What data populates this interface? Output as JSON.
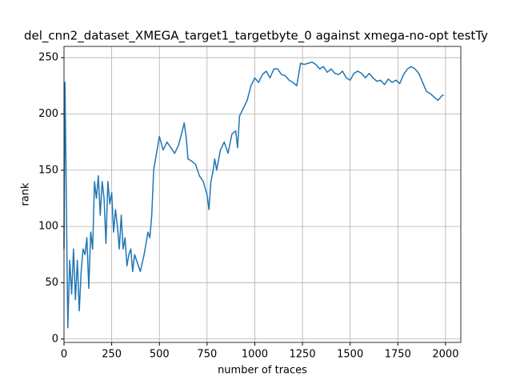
{
  "chart_data": {
    "type": "line",
    "title": "del_cnn2_dataset_XMEGA_target1_targetbyte_0 against xmega-no-opt testTy",
    "x_label": "number of traces",
    "y_label": "rank",
    "x": [
      0,
      5,
      10,
      15,
      20,
      30,
      40,
      50,
      60,
      70,
      80,
      90,
      100,
      110,
      120,
      130,
      140,
      150,
      160,
      170,
      180,
      190,
      200,
      210,
      220,
      230,
      240,
      250,
      260,
      270,
      280,
      290,
      300,
      310,
      320,
      330,
      340,
      350,
      360,
      370,
      380,
      400,
      420,
      440,
      450,
      460,
      470,
      480,
      500,
      520,
      540,
      560,
      580,
      600,
      620,
      630,
      640,
      650,
      670,
      690,
      710,
      730,
      750,
      760,
      770,
      780,
      790,
      800,
      820,
      840,
      860,
      880,
      900,
      910,
      920,
      940,
      960,
      980,
      1000,
      1020,
      1040,
      1060,
      1080,
      1100,
      1120,
      1140,
      1160,
      1180,
      1200,
      1220,
      1240,
      1260,
      1280,
      1300,
      1320,
      1340,
      1360,
      1380,
      1400,
      1420,
      1440,
      1460,
      1480,
      1500,
      1520,
      1540,
      1560,
      1580,
      1600,
      1620,
      1640,
      1660,
      1680,
      1700,
      1720,
      1740,
      1760,
      1780,
      1800,
      1820,
      1840,
      1860,
      1880,
      1900,
      1920,
      1940,
      1960,
      1980,
      1990
    ],
    "series": [
      {
        "name": "rank",
        "color": "#1f77b4",
        "values": [
          80,
          228,
          160,
          80,
          10,
          70,
          40,
          80,
          35,
          70,
          25,
          60,
          80,
          75,
          90,
          45,
          95,
          80,
          140,
          125,
          145,
          110,
          140,
          125,
          85,
          140,
          120,
          130,
          95,
          115,
          100,
          80,
          110,
          80,
          90,
          65,
          75,
          80,
          60,
          75,
          70,
          60,
          75,
          95,
          90,
          110,
          150,
          160,
          180,
          168,
          175,
          170,
          165,
          172,
          185,
          192,
          180,
          160,
          158,
          155,
          145,
          140,
          128,
          115,
          140,
          148,
          160,
          150,
          168,
          175,
          165,
          182,
          185,
          170,
          198,
          205,
          212,
          225,
          232,
          228,
          235,
          238,
          232,
          240,
          240,
          235,
          234,
          230,
          228,
          225,
          245,
          244,
          245,
          246,
          244,
          240,
          242,
          237,
          240,
          236,
          235,
          238,
          232,
          230,
          236,
          238,
          236,
          232,
          236,
          232,
          229,
          230,
          226,
          231,
          228,
          230,
          227,
          235,
          240,
          242,
          240,
          236,
          228,
          220,
          218,
          215,
          212,
          216,
          217
        ]
      }
    ],
    "xlim": [
      0,
      2080
    ],
    "ylim": [
      -3,
      260
    ],
    "xticks": [
      0,
      250,
      500,
      750,
      1000,
      1250,
      1500,
      1750,
      2000
    ],
    "yticks": [
      0,
      50,
      100,
      150,
      200,
      250
    ],
    "grid": true
  }
}
